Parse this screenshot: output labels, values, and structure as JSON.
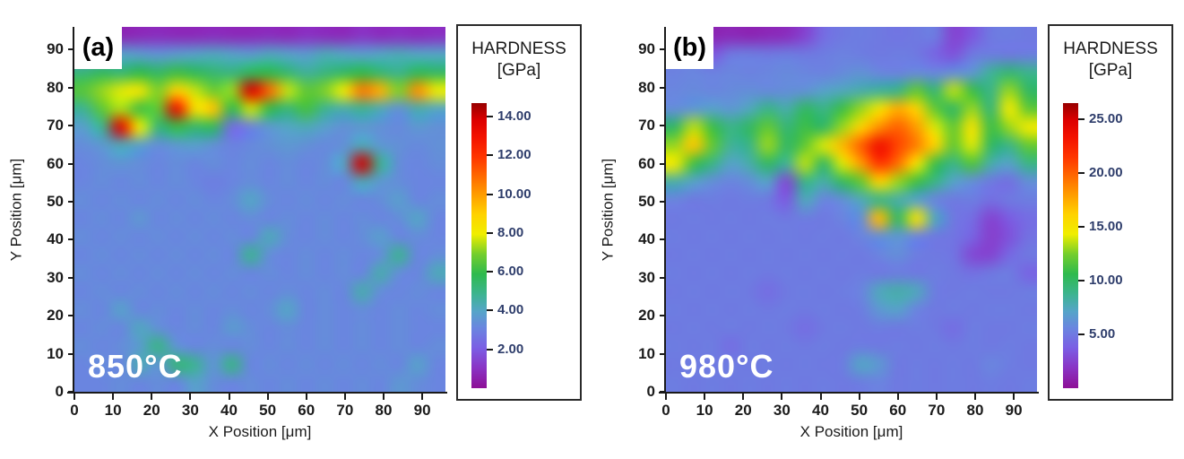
{
  "figure": {
    "background": "#ffffff"
  },
  "colormap": {
    "stops": [
      [
        0.0,
        "#8d0f96"
      ],
      [
        0.07,
        "#8a33c4"
      ],
      [
        0.14,
        "#7b5ee4"
      ],
      [
        0.21,
        "#6a85e0"
      ],
      [
        0.27,
        "#55a5c8"
      ],
      [
        0.33,
        "#3cb490"
      ],
      [
        0.4,
        "#2eba4e"
      ],
      [
        0.47,
        "#74ce2c"
      ],
      [
        0.54,
        "#f0ee00"
      ],
      [
        0.61,
        "#ffd200"
      ],
      [
        0.68,
        "#ff9c00"
      ],
      [
        0.75,
        "#ff6400"
      ],
      [
        0.81,
        "#ff3600"
      ],
      [
        0.88,
        "#f31200"
      ],
      [
        0.94,
        "#dc0000"
      ],
      [
        1.0,
        "#970000"
      ]
    ]
  },
  "panels": [
    {
      "corner_label": "(a)",
      "temp_label": "850°C",
      "xlabel": "X Position [μm]",
      "ylabel": "Y Position [μm]",
      "colorbar": {
        "title_line1": "HARDNESS",
        "title_line2": "[GPa]",
        "vmax": 14.7,
        "ticks": [
          {
            "label": "14.00",
            "value": 14
          },
          {
            "label": "12.00",
            "value": 12
          },
          {
            "label": "10.00",
            "value": 10
          },
          {
            "label": "8.00",
            "value": 8
          },
          {
            "label": "6.00",
            "value": 6
          },
          {
            "label": "4.00",
            "value": 4
          },
          {
            "label": "2.00",
            "value": 2
          }
        ]
      }
    },
    {
      "corner_label": "(b)",
      "temp_label": "980°C",
      "xlabel": "X Position [μm]",
      "ylabel": "Y Position [μm]",
      "colorbar": {
        "title_line1": "HARDNESS",
        "title_line2": "[GPa]",
        "vmax": 26.5,
        "ticks": [
          {
            "label": "25.00",
            "value": 25
          },
          {
            "label": "20.00",
            "value": 20
          },
          {
            "label": "15.00",
            "value": 15
          },
          {
            "label": "10.00",
            "value": 10
          },
          {
            "label": "5.00",
            "value": 5
          }
        ]
      }
    }
  ],
  "chart_data": [
    {
      "type": "heatmap",
      "title": "(a) 850°C nanoindentation hardness map",
      "annotations": [
        "(a)",
        "850°C"
      ],
      "xlabel": "X Position [μm]",
      "ylabel": "Y Position [μm]",
      "x_range": [
        0,
        96
      ],
      "y_range": [
        0,
        96
      ],
      "x_tick_values": [
        0,
        10,
        20,
        30,
        40,
        50,
        60,
        70,
        80,
        90
      ],
      "y_tick_values": [
        0,
        10,
        20,
        30,
        40,
        50,
        60,
        70,
        80,
        90
      ],
      "colorbar_label": "HARDNESS [GPa]",
      "colorbar_tick_values": [
        2,
        4,
        6,
        8,
        10,
        12,
        14
      ],
      "scale_max": 14.7,
      "grid_rows_top_to_bottom": true,
      "values": [
        [
          0.8,
          0.8,
          0.7,
          0.8,
          0.9,
          0.8,
          0.8,
          0.9,
          0.8,
          0.8,
          0.9,
          0.8,
          1.0,
          0.9,
          0.8,
          1.1,
          0.9,
          1.0,
          0.9,
          1.0
        ],
        [
          3.2,
          3.6,
          3.9,
          3.7,
          3.5,
          3.7,
          3.9,
          4.1,
          3.9,
          3.7,
          4.1,
          3.9,
          3.7,
          4.2,
          4.0,
          3.8,
          4.0,
          4.2,
          4.0,
          4.0
        ],
        [
          5.2,
          5.6,
          5.3,
          5.9,
          5.5,
          6.1,
          5.7,
          5.3,
          5.1,
          5.7,
          5.9,
          5.3,
          4.7,
          5.1,
          5.5,
          5.9,
          5.3,
          4.9,
          5.7,
          5.5
        ],
        [
          6.5,
          7.2,
          7.8,
          8.2,
          7.0,
          9.0,
          7.6,
          6.8,
          7.2,
          13.8,
          11.0,
          7.6,
          6.6,
          7.0,
          8.0,
          10.6,
          9.6,
          7.0,
          10.2,
          8.0
        ],
        [
          4.8,
          6.6,
          7.4,
          6.2,
          6.6,
          13.2,
          8.4,
          9.2,
          5.8,
          7.6,
          6.0,
          5.2,
          6.2,
          4.8,
          4.4,
          4.8,
          4.2,
          3.4,
          4.4,
          4.0
        ],
        [
          3.8,
          4.8,
          13.6,
          8.0,
          5.2,
          6.0,
          5.4,
          5.6,
          2.4,
          3.0,
          3.6,
          4.0,
          4.2,
          3.8,
          3.4,
          3.6,
          3.4,
          3.2,
          3.6,
          3.4
        ],
        [
          3.3,
          3.6,
          4.2,
          3.8,
          3.3,
          3.6,
          3.8,
          3.4,
          3.0,
          3.2,
          3.4,
          3.6,
          3.4,
          3.2,
          3.4,
          4.2,
          3.6,
          3.4,
          3.2,
          3.4
        ],
        [
          3.1,
          3.3,
          3.5,
          3.3,
          3.1,
          3.3,
          3.1,
          3.3,
          3.1,
          3.3,
          3.1,
          3.3,
          3.1,
          3.3,
          4.0,
          14.0,
          4.8,
          3.3,
          3.1,
          3.3
        ],
        [
          3.1,
          3.3,
          3.1,
          3.3,
          3.1,
          3.3,
          3.1,
          2.9,
          3.1,
          3.3,
          3.1,
          3.3,
          3.1,
          3.3,
          3.1,
          4.2,
          3.6,
          3.3,
          3.1,
          3.1
        ],
        [
          3.3,
          3.1,
          3.3,
          3.1,
          3.3,
          3.1,
          3.3,
          3.1,
          3.3,
          4.0,
          3.3,
          3.1,
          3.3,
          3.1,
          3.3,
          3.1,
          3.3,
          3.8,
          3.1,
          3.3
        ],
        [
          3.1,
          3.3,
          3.1,
          3.6,
          3.1,
          3.3,
          3.1,
          3.3,
          3.1,
          3.3,
          3.1,
          3.3,
          3.1,
          3.3,
          3.1,
          3.3,
          3.1,
          3.3,
          4.0,
          3.1
        ],
        [
          3.3,
          3.1,
          3.3,
          3.1,
          3.3,
          3.1,
          3.3,
          3.1,
          3.3,
          3.1,
          4.2,
          3.3,
          3.1,
          3.3,
          3.1,
          3.3,
          3.8,
          3.1,
          3.3,
          3.1
        ],
        [
          3.1,
          3.3,
          3.1,
          3.3,
          3.1,
          3.3,
          3.1,
          3.3,
          3.1,
          4.8,
          3.3,
          3.1,
          3.3,
          3.1,
          3.3,
          3.1,
          3.3,
          4.8,
          3.1,
          3.3
        ],
        [
          3.3,
          3.1,
          3.3,
          3.1,
          3.3,
          3.1,
          3.3,
          3.1,
          3.3,
          3.1,
          3.3,
          3.1,
          3.3,
          3.1,
          3.3,
          3.1,
          4.4,
          3.3,
          3.1,
          4.2
        ],
        [
          3.1,
          3.3,
          3.1,
          3.3,
          3.1,
          3.3,
          3.1,
          3.3,
          3.1,
          3.3,
          3.1,
          3.3,
          3.1,
          3.3,
          3.1,
          4.4,
          3.3,
          3.1,
          3.3,
          3.1
        ],
        [
          3.3,
          3.1,
          3.9,
          3.1,
          3.3,
          3.1,
          3.3,
          3.1,
          3.3,
          3.1,
          3.3,
          4.0,
          3.1,
          3.3,
          3.1,
          3.3,
          3.1,
          3.3,
          3.1,
          3.3
        ],
        [
          3.1,
          3.3,
          3.1,
          4.1,
          3.4,
          3.1,
          3.3,
          3.1,
          3.7,
          3.3,
          3.1,
          3.3,
          3.1,
          3.3,
          3.1,
          3.3,
          3.1,
          3.3,
          3.1,
          3.1
        ],
        [
          3.3,
          3.1,
          3.3,
          3.7,
          5.0,
          3.5,
          3.1,
          3.3,
          3.1,
          3.3,
          3.1,
          3.3,
          3.1,
          3.3,
          3.1,
          3.3,
          3.1,
          3.3,
          3.1,
          3.3
        ],
        [
          3.1,
          3.3,
          3.1,
          4.3,
          3.5,
          5.2,
          4.8,
          3.5,
          5.0,
          3.1,
          3.3,
          3.1,
          3.3,
          3.1,
          3.3,
          3.1,
          3.3,
          3.1,
          3.9,
          3.1
        ],
        [
          3.1,
          3.1,
          3.3,
          3.1,
          3.3,
          3.1,
          3.9,
          3.3,
          3.1,
          3.3,
          3.1,
          3.3,
          3.1,
          3.3,
          3.1,
          3.3,
          3.1,
          3.6,
          3.3,
          3.1
        ]
      ]
    },
    {
      "type": "heatmap",
      "title": "(b) 980°C nanoindentation hardness map",
      "annotations": [
        "(b)",
        "980°C"
      ],
      "xlabel": "X Position [μm]",
      "ylabel": "Y Position [μm]",
      "x_range": [
        0,
        96
      ],
      "y_range": [
        0,
        96
      ],
      "x_tick_values": [
        0,
        10,
        20,
        30,
        40,
        50,
        60,
        70,
        80,
        90
      ],
      "y_tick_values": [
        0,
        10,
        20,
        30,
        40,
        50,
        60,
        70,
        80,
        90
      ],
      "colorbar_label": "HARDNESS [GPa]",
      "colorbar_tick_values": [
        5,
        10,
        15,
        20,
        25
      ],
      "scale_max": 26.5,
      "grid_rows_top_to_bottom": true,
      "values": [
        [
          1.2,
          1.1,
          1.2,
          1.4,
          1.2,
          1.4,
          1.6,
          2.6,
          4.4,
          5.0,
          5.2,
          5.0,
          4.8,
          5.0,
          5.2,
          2.6,
          3.4,
          5.0,
          5.2,
          5.0
        ],
        [
          5.0,
          5.2,
          3.4,
          5.0,
          5.2,
          5.0,
          5.2,
          5.0,
          5.2,
          5.4,
          5.2,
          5.0,
          5.2,
          5.0,
          4.0,
          3.2,
          5.0,
          5.2,
          5.0,
          5.2
        ],
        [
          5.4,
          5.6,
          5.4,
          5.6,
          5.4,
          5.6,
          5.8,
          5.6,
          5.4,
          5.8,
          6.2,
          5.6,
          5.4,
          5.8,
          5.6,
          6.0,
          6.4,
          8.5,
          9.5,
          8.8
        ],
        [
          5.6,
          5.8,
          5.6,
          5.8,
          6.0,
          5.8,
          6.0,
          6.2,
          7.0,
          7.5,
          8.0,
          8.5,
          9.0,
          12.0,
          9.5,
          13.5,
          11.0,
          9.0,
          13.0,
          10.0
        ],
        [
          6.0,
          6.5,
          7.0,
          6.5,
          7.5,
          9.0,
          8.0,
          10.0,
          9.0,
          11.0,
          13.0,
          15.0,
          17.5,
          16.0,
          12.0,
          10.0,
          13.0,
          9.5,
          14.5,
          12.0
        ],
        [
          10.0,
          13.5,
          11.0,
          9.0,
          10.0,
          12.0,
          9.5,
          11.0,
          10.0,
          13.0,
          16.0,
          18.5,
          20.0,
          18.0,
          14.0,
          12.0,
          15.0,
          11.0,
          13.0,
          14.5
        ],
        [
          13.0,
          16.5,
          12.0,
          8.5,
          9.0,
          13.0,
          10.0,
          12.0,
          14.0,
          17.0,
          20.0,
          23.5,
          21.0,
          19.0,
          16.0,
          12.0,
          14.0,
          10.0,
          9.0,
          12.0
        ],
        [
          14.5,
          11.0,
          9.0,
          7.0,
          8.0,
          10.0,
          8.5,
          13.5,
          10.0,
          14.0,
          18.0,
          21.5,
          19.5,
          15.0,
          11.0,
          9.0,
          11.5,
          8.0,
          7.0,
          9.0
        ],
        [
          8.0,
          7.0,
          6.0,
          5.5,
          6.0,
          7.0,
          2.8,
          9.0,
          8.0,
          10.0,
          12.0,
          16.0,
          13.0,
          11.0,
          9.0,
          7.0,
          6.0,
          5.0,
          4.5,
          6.0
        ],
        [
          5.5,
          5.0,
          5.2,
          5.0,
          5.2,
          5.0,
          3.6,
          7.5,
          5.5,
          6.0,
          7.5,
          9.0,
          8.0,
          7.0,
          5.5,
          5.0,
          5.2,
          4.5,
          5.0,
          5.2
        ],
        [
          5.0,
          5.2,
          5.0,
          5.2,
          5.0,
          5.2,
          5.0,
          5.2,
          5.0,
          5.5,
          6.0,
          17.0,
          10.0,
          15.0,
          7.5,
          5.0,
          4.4,
          2.6,
          3.6,
          4.4
        ],
        [
          5.2,
          5.0,
          5.2,
          5.0,
          5.2,
          5.0,
          5.2,
          5.0,
          5.2,
          5.0,
          5.5,
          6.0,
          6.5,
          5.5,
          5.0,
          4.8,
          4.0,
          2.4,
          3.2,
          4.6
        ],
        [
          5.0,
          5.2,
          5.0,
          5.2,
          5.0,
          5.2,
          5.0,
          5.2,
          5.0,
          5.2,
          5.0,
          5.5,
          6.0,
          5.2,
          5.0,
          4.8,
          2.8,
          2.6,
          4.2,
          5.0
        ],
        [
          5.2,
          5.0,
          5.2,
          5.0,
          5.2,
          5.0,
          5.2,
          5.0,
          5.2,
          5.0,
          5.2,
          5.0,
          5.2,
          5.0,
          5.2,
          5.0,
          4.6,
          5.0,
          5.2,
          4.0
        ],
        [
          5.0,
          5.2,
          5.0,
          5.2,
          5.0,
          4.4,
          5.0,
          5.2,
          5.0,
          5.2,
          5.5,
          7.5,
          8.0,
          7.5,
          5.2,
          5.0,
          5.2,
          5.0,
          5.0,
          5.2
        ],
        [
          5.2,
          5.0,
          5.2,
          5.0,
          5.2,
          5.0,
          5.2,
          5.0,
          5.2,
          5.0,
          5.2,
          6.5,
          7.0,
          5.5,
          5.0,
          5.2,
          5.0,
          5.2,
          5.2,
          5.0
        ],
        [
          5.0,
          5.2,
          5.0,
          5.2,
          5.0,
          5.2,
          5.0,
          4.4,
          5.0,
          5.2,
          5.0,
          5.2,
          5.0,
          5.2,
          5.0,
          4.4,
          5.2,
          5.0,
          5.0,
          5.2
        ],
        [
          5.2,
          5.0,
          5.2,
          4.4,
          5.2,
          5.0,
          5.2,
          5.0,
          5.2,
          5.0,
          5.2,
          5.0,
          5.2,
          5.0,
          5.2,
          5.0,
          5.2,
          5.0,
          5.2,
          5.0
        ],
        [
          5.0,
          5.2,
          5.0,
          5.2,
          5.0,
          5.2,
          5.0,
          5.2,
          5.0,
          5.2,
          7.2,
          6.5,
          5.0,
          5.2,
          5.0,
          5.2,
          5.0,
          5.6,
          5.2,
          5.0
        ],
        [
          5.2,
          5.0,
          5.2,
          5.0,
          5.2,
          5.0,
          5.2,
          5.0,
          5.2,
          5.0,
          5.2,
          5.5,
          5.0,
          5.2,
          5.0,
          5.2,
          5.0,
          5.2,
          5.0,
          5.2
        ]
      ]
    }
  ]
}
